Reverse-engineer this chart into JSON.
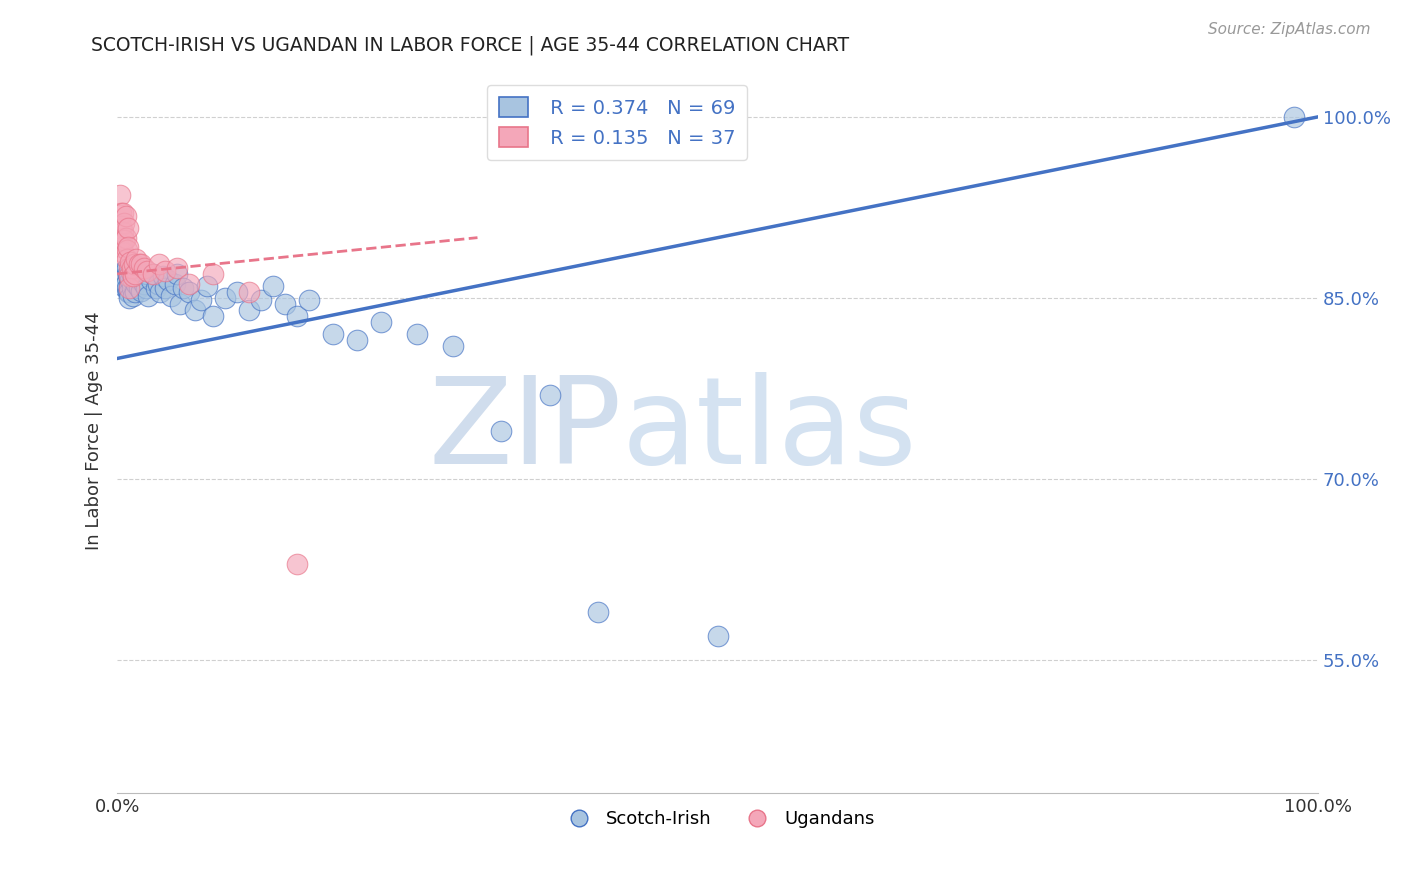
{
  "title": "SCOTCH-IRISH VS UGANDAN IN LABOR FORCE | AGE 35-44 CORRELATION CHART",
  "source": "Source: ZipAtlas.com",
  "ylabel": "In Labor Force | Age 35-44",
  "ytick_labels": [
    "100.0%",
    "85.0%",
    "70.0%",
    "55.0%"
  ],
  "ytick_values": [
    1.0,
    0.85,
    0.7,
    0.55
  ],
  "xlim": [
    0.0,
    1.0
  ],
  "ylim": [
    0.44,
    1.04
  ],
  "legend_label1": "Scotch-Irish",
  "legend_label2": "Ugandans",
  "r1": 0.374,
  "n1": 69,
  "r2": 0.135,
  "n2": 37,
  "scatter_color1": "#a8c4e0",
  "scatter_color2": "#f4a7b9",
  "line_color1": "#4472c4",
  "line_color2": "#e8758a",
  "watermark_zip": "ZIP",
  "watermark_atlas": "atlas",
  "si_x": [
    0.005,
    0.005,
    0.005,
    0.006,
    0.007,
    0.007,
    0.008,
    0.008,
    0.009,
    0.009,
    0.01,
    0.01,
    0.01,
    0.01,
    0.011,
    0.011,
    0.012,
    0.012,
    0.013,
    0.013,
    0.014,
    0.015,
    0.015,
    0.016,
    0.017,
    0.018,
    0.019,
    0.02,
    0.02,
    0.022,
    0.024,
    0.025,
    0.026,
    0.028,
    0.03,
    0.032,
    0.034,
    0.036,
    0.038,
    0.04,
    0.042,
    0.045,
    0.048,
    0.05,
    0.052,
    0.055,
    0.06,
    0.065,
    0.07,
    0.075,
    0.08,
    0.09,
    0.1,
    0.11,
    0.12,
    0.13,
    0.14,
    0.15,
    0.16,
    0.18,
    0.2,
    0.22,
    0.25,
    0.28,
    0.32,
    0.36,
    0.4,
    0.5,
    0.98
  ],
  "si_y": [
    0.87,
    0.865,
    0.86,
    0.872,
    0.868,
    0.862,
    0.875,
    0.858,
    0.87,
    0.855,
    0.868,
    0.86,
    0.855,
    0.85,
    0.875,
    0.865,
    0.87,
    0.858,
    0.865,
    0.852,
    0.875,
    0.868,
    0.855,
    0.862,
    0.87,
    0.858,
    0.865,
    0.87,
    0.856,
    0.862,
    0.858,
    0.87,
    0.852,
    0.865,
    0.87,
    0.858,
    0.862,
    0.855,
    0.868,
    0.858,
    0.865,
    0.852,
    0.862,
    0.87,
    0.845,
    0.858,
    0.855,
    0.84,
    0.848,
    0.86,
    0.835,
    0.85,
    0.855,
    0.84,
    0.848,
    0.86,
    0.845,
    0.835,
    0.848,
    0.82,
    0.815,
    0.83,
    0.82,
    0.81,
    0.74,
    0.77,
    0.59,
    0.57,
    1.0
  ],
  "ug_x": [
    0.002,
    0.003,
    0.003,
    0.004,
    0.004,
    0.005,
    0.005,
    0.005,
    0.006,
    0.006,
    0.007,
    0.007,
    0.008,
    0.008,
    0.009,
    0.009,
    0.01,
    0.01,
    0.01,
    0.011,
    0.012,
    0.013,
    0.014,
    0.015,
    0.016,
    0.018,
    0.02,
    0.022,
    0.025,
    0.03,
    0.035,
    0.04,
    0.05,
    0.06,
    0.08,
    0.11,
    0.15
  ],
  "ug_y": [
    0.935,
    0.92,
    0.91,
    0.9,
    0.892,
    0.92,
    0.905,
    0.888,
    0.912,
    0.898,
    0.918,
    0.9,
    0.89,
    0.882,
    0.908,
    0.892,
    0.875,
    0.868,
    0.858,
    0.88,
    0.875,
    0.868,
    0.878,
    0.87,
    0.882,
    0.878,
    0.878,
    0.875,
    0.872,
    0.87,
    0.878,
    0.872,
    0.875,
    0.862,
    0.87,
    0.855,
    0.63
  ],
  "blue_line_x0": 0.0,
  "blue_line_y0": 0.8,
  "blue_line_x1": 1.0,
  "blue_line_y1": 1.0,
  "pink_line_x0": 0.0,
  "pink_line_y0": 0.87,
  "pink_line_x1": 0.3,
  "pink_line_y1": 0.9
}
